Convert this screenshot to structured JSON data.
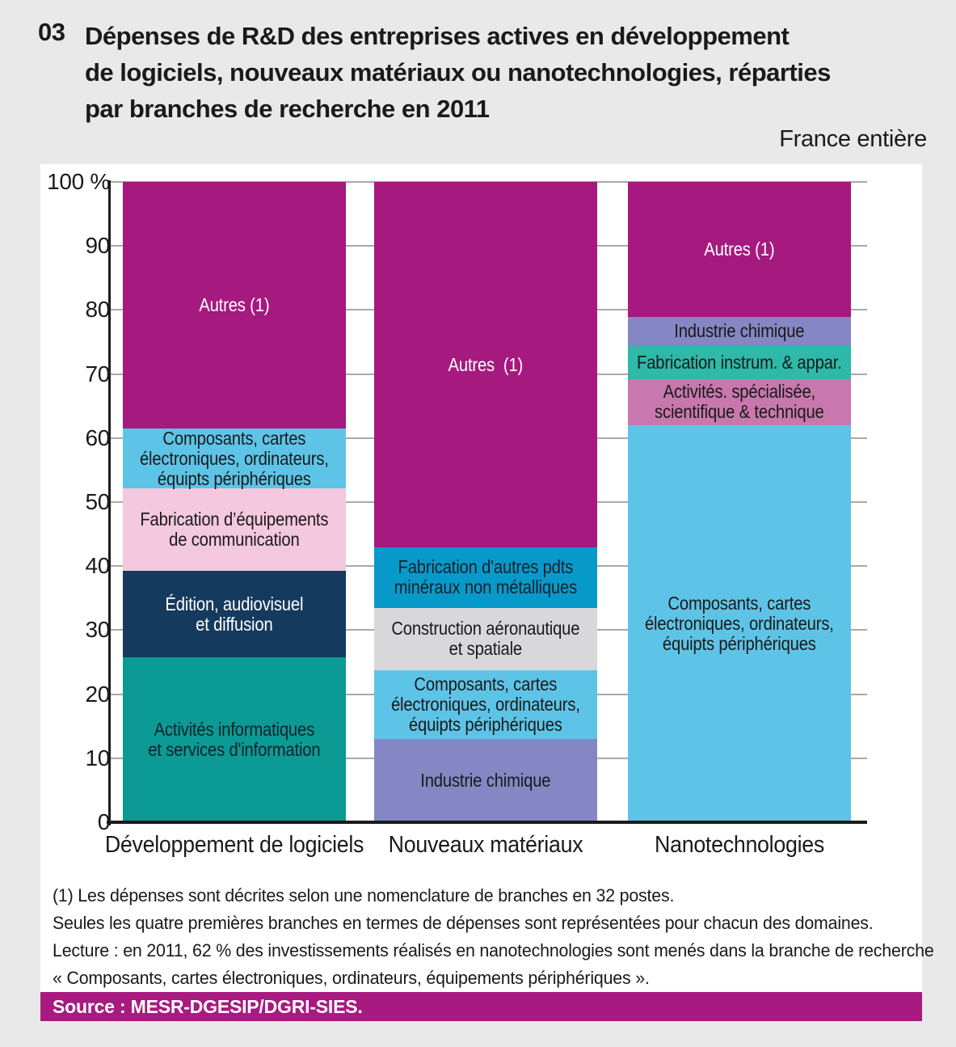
{
  "header": {
    "number": "03",
    "title_lines": [
      "Dépenses de R&D des entreprises actives en développement",
      "de logiciels, nouveaux matériaux ou nanotechnologies, réparties",
      "par branches de recherche en 2011"
    ],
    "region_note": "France entière"
  },
  "chart_data": {
    "type": "bar",
    "subtype": "stacked-100-percent",
    "unit": "%",
    "title": "Dépenses de R&D des entreprises actives en développement de logiciels, nouveaux matériaux ou nanotechnologies, réparties par branches de recherche en 2011",
    "y_axis": {
      "min": 0,
      "max": 100,
      "tick_step": 10,
      "tick_labels": [
        "100 %",
        "90",
        "80",
        "70",
        "60",
        "50",
        "40",
        "30",
        "20",
        "10",
        "0"
      ],
      "grid": true
    },
    "categories": [
      "Développement de logiciels",
      "Nouveaux matériaux",
      "Nanotechnologies"
    ],
    "bars": [
      {
        "category": "Développement de logiciels",
        "segments": [
          {
            "label": "Activités informatiques\net services d'information",
            "value": 25.7,
            "color": "#0b9a94",
            "text_color": "#10222b"
          },
          {
            "label": "Édition, audiovisuel\net diffusion",
            "value": 13.6,
            "color": "#143a5e",
            "text_color": "#ffffff"
          },
          {
            "label": "Fabrication d’équipements\nde communication",
            "value": 12.8,
            "color": "#f4c8df",
            "text_color": "#1a1a1a"
          },
          {
            "label": "Composants, cartes\nélectroniques, ordinateurs,\néquipts périphériques",
            "value": 9.4,
            "color": "#5ec4e7",
            "text_color": "#1a1a1a"
          },
          {
            "label": "Autres (1)",
            "value": 38.5,
            "color": "#a6197f",
            "text_color": "#ffffff"
          }
        ]
      },
      {
        "category": "Nouveaux matériaux",
        "segments": [
          {
            "label": "Industrie chimique",
            "value": 13.0,
            "color": "#8487c3",
            "text_color": "#1a1a1a"
          },
          {
            "label": "Composants, cartes\nélectroniques, ordinateurs,\néquipts périphériques",
            "value": 10.7,
            "color": "#5ec4e7",
            "text_color": "#1a1a1a"
          },
          {
            "label": "Construction aéronautique\net spatiale",
            "value": 9.8,
            "color": "#d8d8db",
            "text_color": "#1a1a1a"
          },
          {
            "label": "Fabrication d'autres pdts\nminéraux non métalliques",
            "value": 9.4,
            "color": "#0899cb",
            "text_color": "#12222a"
          },
          {
            "label": "Autres  (1)",
            "value": 57.1,
            "color": "#a6197f",
            "text_color": "#ffffff"
          }
        ]
      },
      {
        "category": "Nanotechnologies",
        "segments": [
          {
            "label": "Composants, cartes\nélectroniques, ordinateurs,\néquipts périphériques",
            "value": 62.0,
            "color": "#5ec4e7",
            "text_color": "#1a1a1a"
          },
          {
            "label": "Activités. spécialisée,\nscientifique & technique",
            "value": 7.2,
            "color": "#c878ad",
            "text_color": "#1a1a1a"
          },
          {
            "label": "Fabrication instrum. & appar.",
            "value": 5.2,
            "color": "#2eb9a9",
            "text_color": "#1a1a1a"
          },
          {
            "label": "Industrie chimique",
            "value": 4.5,
            "color": "#8487c3",
            "text_color": "#1a1a1a"
          },
          {
            "label": "Autres (1)",
            "value": 21.1,
            "color": "#a6197f",
            "text_color": "#ffffff"
          }
        ]
      }
    ]
  },
  "footnotes": [
    "(1) Les dépenses sont décrites selon une nomenclature de branches en 32 postes.",
    "Seules les quatre premières branches en termes de dépenses sont représentées pour chacun des domaines.",
    "Lecture : en 2011, 62 % des investissements réalisés en nanotechnologies sont menés dans la branche de recherche",
    "« Composants, cartes électroniques, ordinateurs, équipements périphériques »."
  ],
  "source": {
    "label": "Source : MESR-DGESIP/DGRI-SIES."
  },
  "palette": {
    "background": "#e9e9e9",
    "panel": "#ffffff",
    "source_band": "#a81a80",
    "gridline": "#a9a9a9",
    "axis": "#1a1a1a",
    "magenta_autres": "#a6197f",
    "light_blue_composants": "#5ec4e7",
    "teal_informatique": "#0b9a94",
    "navy_edition": "#143a5e",
    "pink_equip_comm": "#f4c8df",
    "slate_chimie": "#8487c3",
    "gray_aero": "#d8d8db",
    "cyan_mineraux": "#0899cb",
    "green_instrum": "#2eb9a9",
    "mauve_activites": "#c878ad"
  }
}
